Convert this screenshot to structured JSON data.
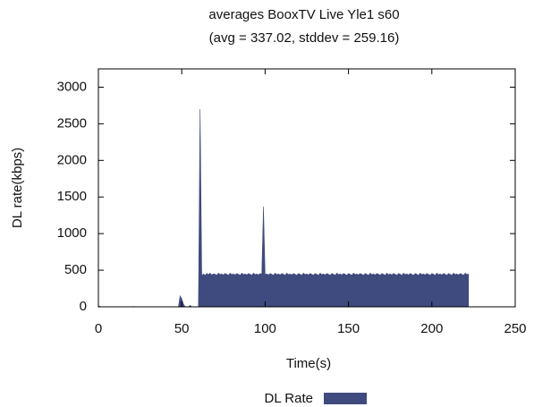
{
  "chart_data": {
    "type": "area",
    "title": "averages BooxTV Live Yle1 s60",
    "subtitle": "(avg = 337.02, stddev = 259.16)",
    "x_label": "Time(s)",
    "y_label": "DL rate(kbps)",
    "xlim": [
      0,
      250
    ],
    "xticks": [
      0,
      50,
      100,
      150,
      200,
      250
    ],
    "ylim": [
      0,
      3250
    ],
    "yticks": [
      0,
      500,
      1000,
      1500,
      2000,
      2500,
      3000
    ],
    "legend": "bottom",
    "x": [
      0,
      1,
      2,
      3,
      4,
      5,
      6,
      7,
      8,
      9,
      10,
      11,
      12,
      13,
      14,
      15,
      16,
      17,
      18,
      19,
      20,
      21,
      22,
      23,
      24,
      25,
      26,
      27,
      28,
      29,
      30,
      31,
      32,
      33,
      34,
      35,
      36,
      37,
      38,
      39,
      40,
      41,
      42,
      43,
      44,
      45,
      46,
      47,
      48,
      49,
      50,
      51,
      52,
      53,
      54,
      55,
      56,
      57,
      58,
      59,
      60,
      61,
      62,
      63,
      64,
      65,
      66,
      67,
      68,
      69,
      70,
      71,
      72,
      73,
      74,
      75,
      76,
      77,
      78,
      79,
      80,
      81,
      82,
      83,
      84,
      85,
      86,
      87,
      88,
      89,
      90,
      91,
      92,
      93,
      94,
      95,
      96,
      97,
      98,
      99,
      100,
      101,
      102,
      103,
      104,
      105,
      106,
      107,
      108,
      109,
      110,
      111,
      112,
      113,
      114,
      115,
      116,
      117,
      118,
      119,
      120,
      121,
      122,
      123,
      124,
      125,
      126,
      127,
      128,
      129,
      130,
      131,
      132,
      133,
      134,
      135,
      136,
      137,
      138,
      139,
      140,
      141,
      142,
      143,
      144,
      145,
      146,
      147,
      148,
      149,
      150,
      151,
      152,
      153,
      154,
      155,
      156,
      157,
      158,
      159,
      160,
      161,
      162,
      163,
      164,
      165,
      166,
      167,
      168,
      169,
      170,
      171,
      172,
      173,
      174,
      175,
      176,
      177,
      178,
      179,
      180,
      181,
      182,
      183,
      184,
      185,
      186,
      187,
      188,
      189,
      190,
      191,
      192,
      193,
      194,
      195,
      196,
      197,
      198,
      199,
      200,
      201,
      202,
      203,
      204,
      205,
      206,
      207,
      208,
      209,
      210,
      211,
      212,
      213,
      214,
      215,
      216,
      217,
      218,
      219,
      220,
      221,
      222
    ],
    "series": [
      {
        "name": "DL Rate",
        "color": "#3f4a7e",
        "values": [
          10,
          5,
          0,
          0,
          0,
          0,
          0,
          0,
          0,
          0,
          0,
          0,
          0,
          0,
          0,
          0,
          0,
          0,
          0,
          0,
          0,
          5,
          0,
          0,
          0,
          0,
          0,
          0,
          0,
          0,
          0,
          0,
          0,
          0,
          0,
          0,
          0,
          0,
          0,
          0,
          0,
          0,
          0,
          0,
          0,
          0,
          0,
          0,
          0,
          150,
          110,
          40,
          0,
          0,
          0,
          20,
          0,
          0,
          0,
          0,
          0,
          2700,
          420,
          450,
          430,
          455,
          440,
          460,
          435,
          450,
          445,
          430,
          460,
          440,
          450,
          435,
          455,
          445,
          430,
          460,
          440,
          450,
          435,
          455,
          445,
          430,
          460,
          440,
          450,
          435,
          455,
          445,
          430,
          460,
          440,
          450,
          435,
          455,
          445,
          1370,
          440,
          450,
          435,
          455,
          445,
          430,
          460,
          440,
          450,
          435,
          455,
          445,
          430,
          460,
          440,
          450,
          435,
          455,
          445,
          430,
          455,
          445,
          430,
          460,
          440,
          450,
          435,
          455,
          445,
          430,
          455,
          445,
          430,
          460,
          440,
          450,
          435,
          455,
          445,
          430,
          455,
          445,
          430,
          460,
          440,
          450,
          435,
          455,
          445,
          430,
          455,
          445,
          430,
          460,
          440,
          450,
          435,
          455,
          445,
          430,
          455,
          445,
          430,
          460,
          440,
          450,
          435,
          455,
          445,
          430,
          455,
          445,
          430,
          460,
          440,
          450,
          435,
          455,
          445,
          430,
          455,
          445,
          430,
          460,
          440,
          450,
          435,
          455,
          445,
          430,
          455,
          445,
          430,
          460,
          440,
          450,
          435,
          455,
          445,
          430,
          455,
          445,
          430,
          460,
          440,
          450,
          435,
          455,
          445,
          430,
          455,
          445,
          430,
          460,
          440,
          450,
          435,
          455,
          445,
          430,
          460,
          440,
          450
        ]
      }
    ]
  }
}
